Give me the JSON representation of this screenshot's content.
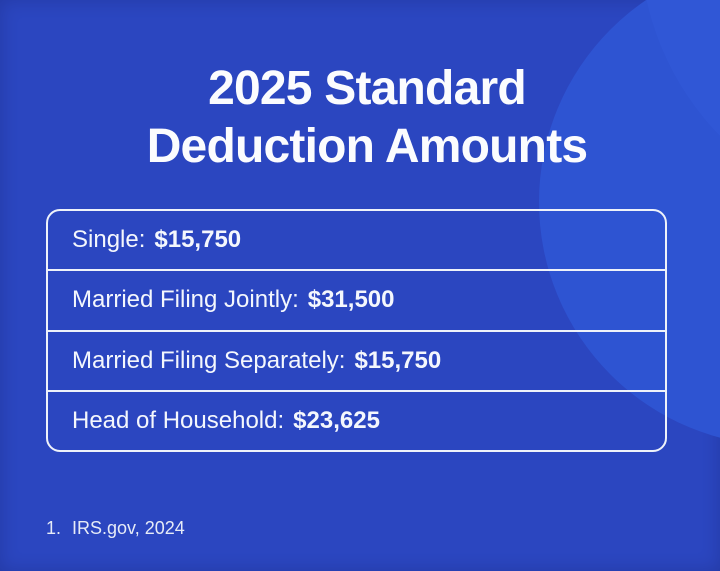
{
  "title": {
    "line1": "2025 Standard",
    "line2": "Deduction Amounts"
  },
  "table": {
    "rows": [
      {
        "label": "Single:",
        "amount": "$15,750"
      },
      {
        "label": "Married Filing Jointly:",
        "amount": "$31,500"
      },
      {
        "label": "Married Filing Separately:",
        "amount": "$15,750"
      },
      {
        "label": "Head of Household:",
        "amount": "$23,625"
      }
    ]
  },
  "footnote": {
    "marker": "1.",
    "text": "IRS.gov, 2024"
  },
  "colors": {
    "background": "#2b46c0",
    "circle": "#2e54d2",
    "circle2": "#3057d6",
    "border": "#eef2fa",
    "title_text": "#fbfcfe",
    "row_text": "#f4f7fd",
    "footnote_text": "#e6ebf7"
  },
  "chart_data": {
    "type": "table",
    "title": "2025 Standard Deduction Amounts",
    "categories": [
      "Single",
      "Married Filing Jointly",
      "Married Filing Separately",
      "Head of Household"
    ],
    "values": [
      15750,
      31500,
      15750,
      23625
    ],
    "value_format": "USD",
    "source_note": "1. IRS.gov, 2024"
  }
}
